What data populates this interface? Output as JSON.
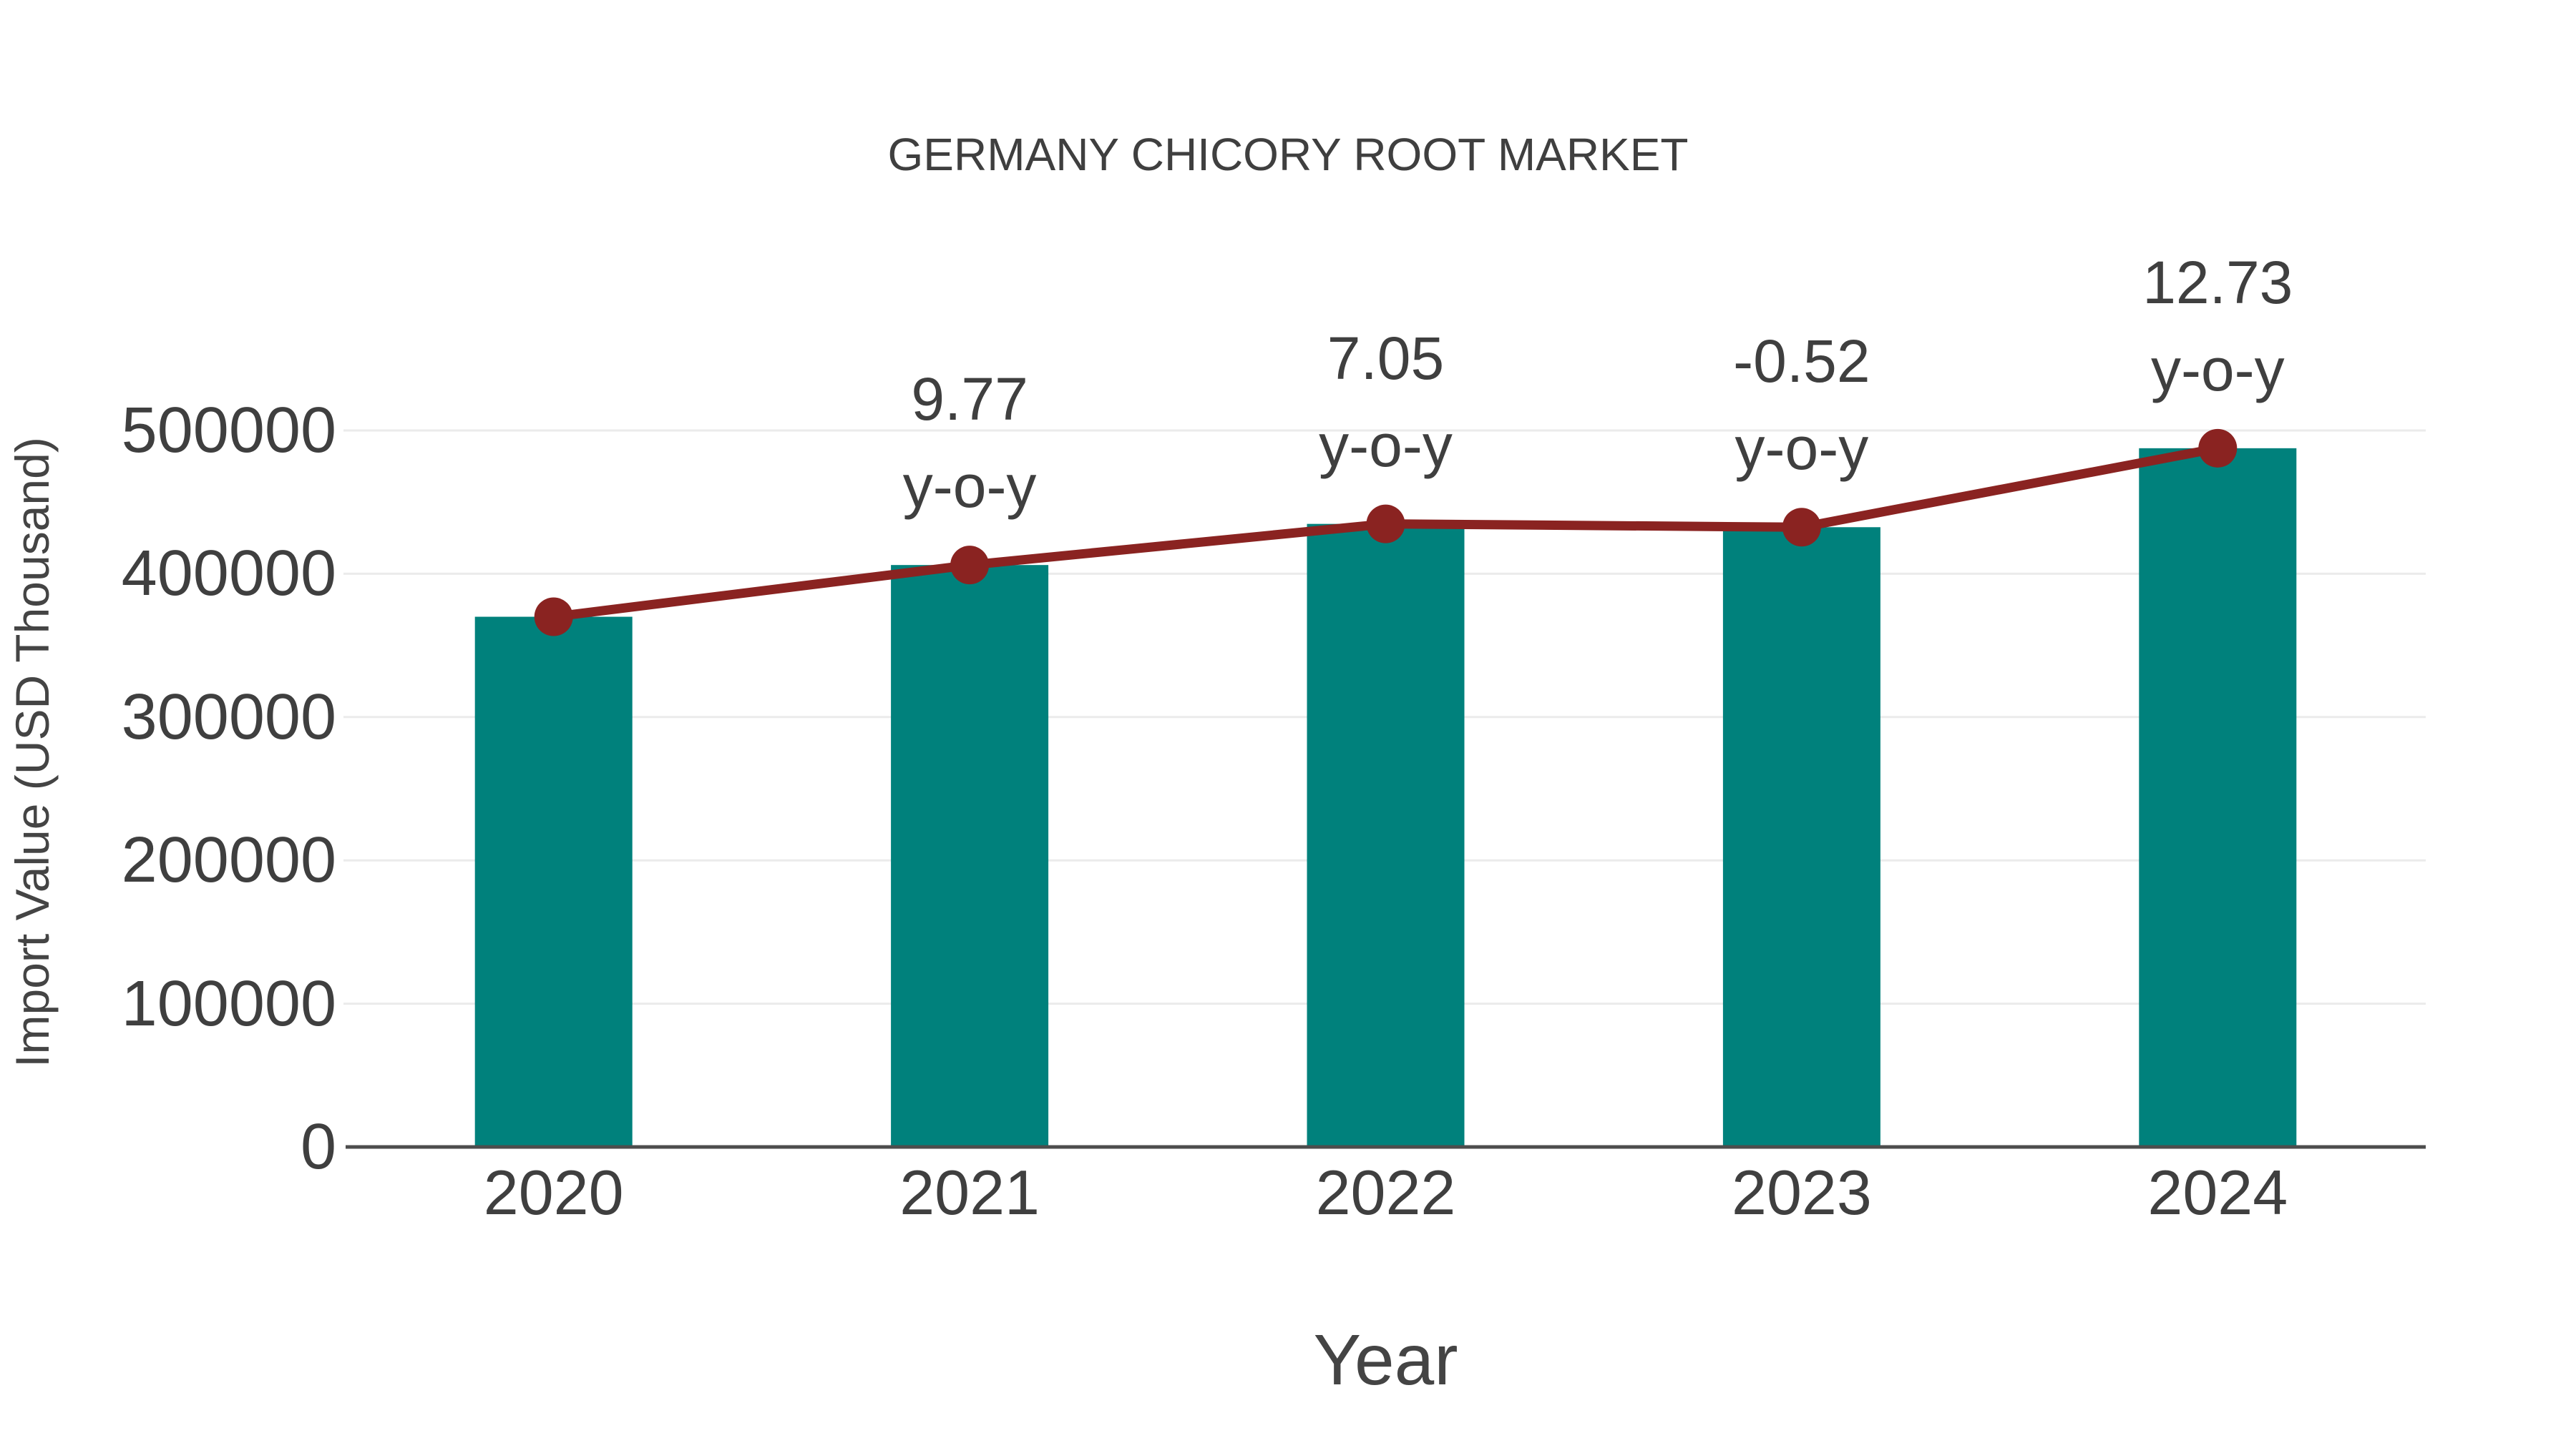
{
  "page": {
    "background": "#ffffff"
  },
  "chart_data": {
    "type": "bar",
    "title": "GERMANY CHICORY ROOT MARKET",
    "xlabel": "Year",
    "ylabel": "Import Value (USD Thousand)",
    "categories": [
      "2020",
      "2021",
      "2022",
      "2023",
      "2024"
    ],
    "series": [
      {
        "name": "Import Value (USD Thousand)",
        "type": "bar",
        "color": "#00817c",
        "values": [
          370000,
          406100,
          434800,
          432500,
          487600
        ]
      },
      {
        "name": "y-o-y change",
        "type": "line",
        "color": "#8a2321",
        "marker": "circle",
        "plotted_at_values": [
          370000,
          406100,
          434800,
          432500,
          487600
        ],
        "yoy_percent": [
          null,
          9.77,
          7.05,
          -0.52,
          12.73
        ]
      }
    ],
    "annotations": [
      {
        "category": "2021",
        "value": "9.77",
        "suffix": "y-o-y"
      },
      {
        "category": "2022",
        "value": "7.05",
        "suffix": "y-o-y"
      },
      {
        "category": "2023",
        "value": "-0.52",
        "suffix": "y-o-y"
      },
      {
        "category": "2024",
        "value": "12.73",
        "suffix": "y-o-y"
      }
    ],
    "y_ticks": [
      "0",
      "100000",
      "200000",
      "300000",
      "400000",
      "500000"
    ],
    "ylim": [
      0,
      500000
    ],
    "grid": "horizontal",
    "legend_position": "none"
  },
  "colors": {
    "bar": "#00817c",
    "line": "#8a2321",
    "text": "#3f3f3f",
    "grid": "#ebebeb",
    "axis": "#4d4d4d",
    "background": "#ffffff"
  }
}
